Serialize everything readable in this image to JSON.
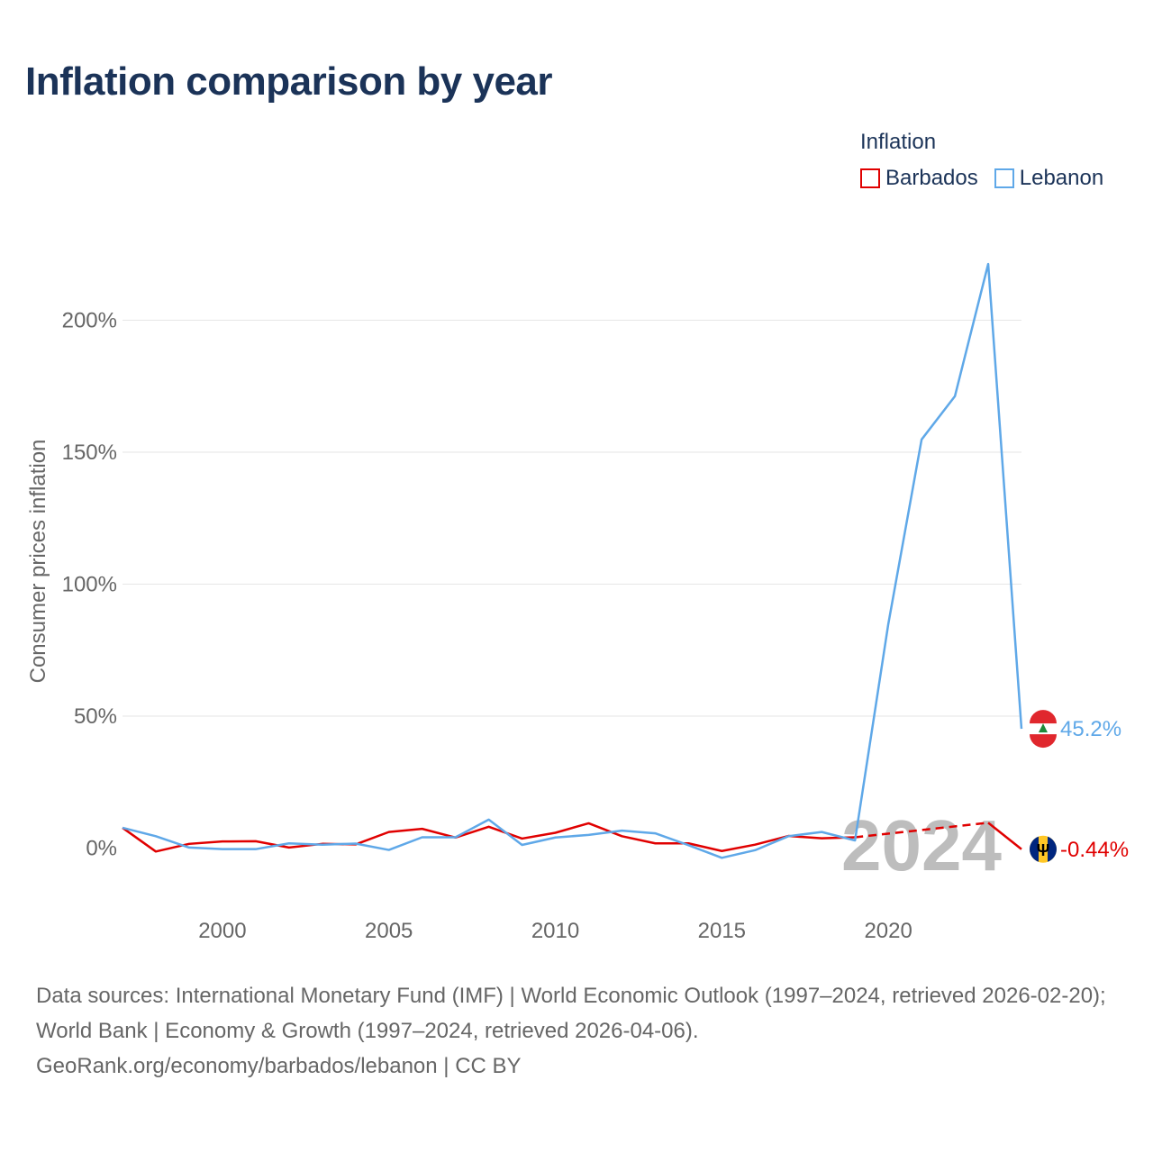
{
  "chart_data": {
    "type": "line",
    "title": "Inflation comparison by year",
    "xlabel": "",
    "ylabel": "Consumer prices inflation",
    "xlim": [
      1997,
      2024
    ],
    "ylim": [
      -20,
      225
    ],
    "grid": true,
    "x_ticks": [
      2000,
      2005,
      2010,
      2015,
      2020
    ],
    "x_tick_labels": [
      "2000",
      "2005",
      "2010",
      "2015",
      "2020"
    ],
    "y_ticks": [
      0,
      50,
      100,
      150,
      200
    ],
    "y_tick_labels": [
      "0%",
      "50%",
      "100%",
      "150%",
      "200%"
    ],
    "legend": {
      "title": "Inflation",
      "position": "top-right"
    },
    "watermark_year": "2024",
    "series": [
      {
        "name": "Barbados",
        "color": "#e00000",
        "x": [
          1997,
          1998,
          1999,
          2000,
          2001,
          2002,
          2003,
          2004,
          2005,
          2006,
          2007,
          2008,
          2009,
          2010,
          2011,
          2012,
          2013,
          2014,
          2015,
          2016,
          2017,
          2018,
          2019,
          2020,
          2021,
          2022,
          2023,
          2024
        ],
        "values": [
          7.7,
          -1.3,
          1.6,
          2.5,
          2.6,
          0.2,
          1.6,
          1.4,
          6.1,
          7.3,
          4.0,
          8.1,
          3.6,
          5.8,
          9.4,
          4.5,
          1.8,
          1.8,
          -1.1,
          1.3,
          4.6,
          3.7,
          4.1,
          null,
          null,
          null,
          9.6,
          -0.44
        ],
        "dashed_segment": [
          2019,
          2023
        ],
        "end_label": "-0.44%",
        "flag_icon": "barbados-flag-icon"
      },
      {
        "name": "Lebanon",
        "color": "#5fa8e8",
        "x": [
          1997,
          1998,
          1999,
          2000,
          2001,
          2002,
          2003,
          2004,
          2005,
          2006,
          2007,
          2008,
          2009,
          2010,
          2011,
          2012,
          2013,
          2014,
          2015,
          2016,
          2017,
          2018,
          2019,
          2020,
          2021,
          2022,
          2023,
          2024
        ],
        "values": [
          7.7,
          4.5,
          0.2,
          -0.4,
          -0.4,
          1.8,
          1.3,
          1.7,
          -0.7,
          4.1,
          4.1,
          10.8,
          1.2,
          4.0,
          5.0,
          6.6,
          5.6,
          1.1,
          -3.7,
          -0.8,
          4.5,
          6.1,
          2.9,
          84.9,
          154.8,
          171.2,
          221.3,
          45.2
        ],
        "end_label": "45.2%",
        "flag_icon": "lebanon-flag-icon"
      }
    ]
  },
  "footer": {
    "line1": "Data sources: International Monetary Fund (IMF) | World Economic Outlook (1997–2024, retrieved 2026-02-20); World Bank | Economy & Growth (1997–2024, retrieved 2026-04-06).",
    "line2": "GeoRank.org/economy/barbados/lebanon | CC BY"
  }
}
